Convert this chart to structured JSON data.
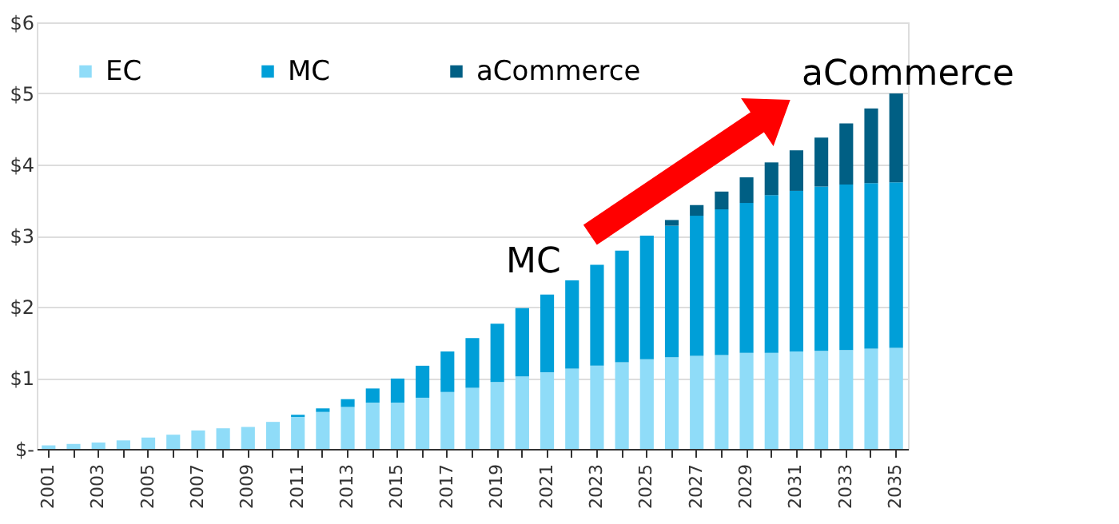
{
  "chart_data": {
    "type": "bar",
    "stacked": true,
    "categories": [
      "2001",
      null,
      "2003",
      null,
      "2005",
      null,
      "2007",
      null,
      "2009",
      null,
      "2011",
      null,
      "2013",
      null,
      "2015",
      null,
      "2017",
      null,
      "2019",
      null,
      "2021",
      null,
      "2023",
      null,
      "2025",
      null,
      "2027",
      null,
      "2029",
      null,
      "2031",
      null,
      "2033",
      null,
      "2035"
    ],
    "series": [
      {
        "name": "EC",
        "color": "#8fdcf8",
        "values": [
          0.05,
          0.07,
          0.09,
          0.12,
          0.16,
          0.2,
          0.26,
          0.29,
          0.31,
          0.38,
          0.45,
          0.52,
          0.59,
          0.65,
          0.65,
          0.72,
          0.8,
          0.86,
          0.94,
          1.02,
          1.08,
          1.13,
          1.17,
          1.22,
          1.26,
          1.29,
          1.31,
          1.32,
          1.35,
          1.35,
          1.37,
          1.38,
          1.39,
          1.41,
          1.42
        ]
      },
      {
        "name": "MC",
        "color": "#009fd8",
        "values": [
          0,
          0,
          0,
          0,
          0,
          0,
          0,
          0,
          0,
          0,
          0.03,
          0.05,
          0.11,
          0.2,
          0.34,
          0.45,
          0.57,
          0.7,
          0.82,
          0.96,
          1.09,
          1.24,
          1.42,
          1.57,
          1.74,
          1.85,
          1.97,
          2.05,
          2.11,
          2.22,
          2.26,
          2.31,
          2.33,
          2.33,
          2.33
        ]
      },
      {
        "name": "aCommerce",
        "color": "#005f84",
        "values": [
          0,
          0,
          0,
          0,
          0,
          0,
          0,
          0,
          0,
          0,
          0,
          0,
          0,
          0,
          0,
          0,
          0,
          0,
          0,
          0,
          0,
          0,
          0,
          0,
          0,
          0.08,
          0.15,
          0.25,
          0.36,
          0.46,
          0.57,
          0.69,
          0.86,
          1.05,
          1.25
        ]
      }
    ],
    "ylim": [
      0,
      6
    ],
    "yticks": [
      {
        "value": 0,
        "label": "$-"
      },
      {
        "value": 1,
        "label": "$1"
      },
      {
        "value": 2,
        "label": "$2"
      },
      {
        "value": 3,
        "label": "$3"
      },
      {
        "value": 4,
        "label": "$4"
      },
      {
        "value": 5,
        "label": "$5"
      },
      {
        "value": 6,
        "label": "$6"
      }
    ],
    "grid": "y",
    "legend": "top left",
    "annotations": [
      "MC",
      "aCommerce"
    ]
  }
}
